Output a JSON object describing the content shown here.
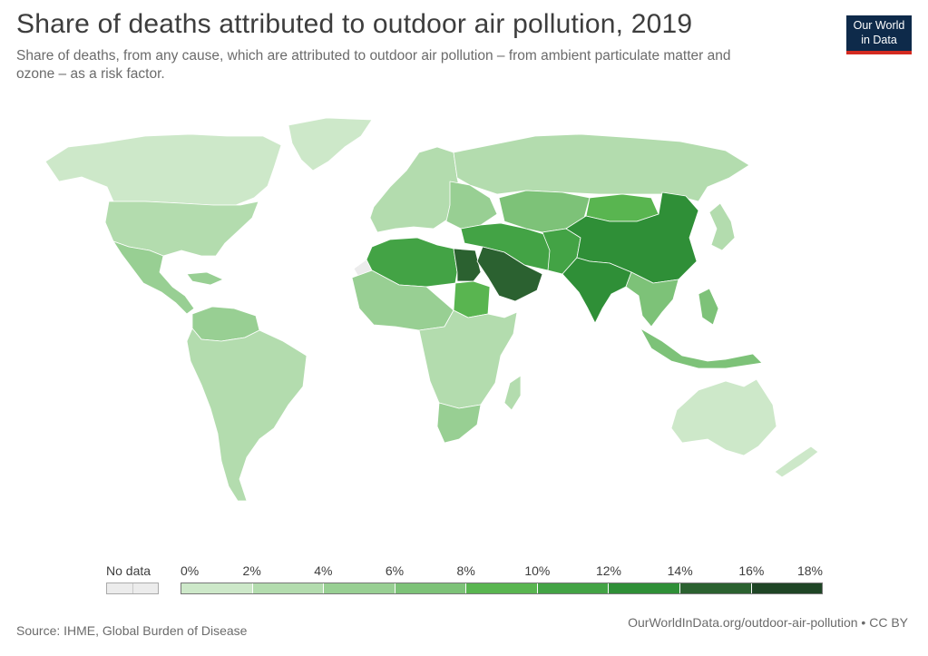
{
  "header": {
    "title": "Share of deaths attributed to outdoor air pollution, 2019",
    "subtitle": "Share of deaths, from any cause, which are attributed to outdoor air pollution – from ambient particulate matter and ozone – as a risk factor."
  },
  "logo": {
    "line1": "Our World",
    "line2": "in Data",
    "bg_color": "#0e2a4a",
    "accent_color": "#d42b21"
  },
  "legend": {
    "no_data_label": "No data",
    "no_data_color": "#ececec",
    "ticks": [
      "0%",
      "2%",
      "4%",
      "6%",
      "8%",
      "10%",
      "12%",
      "14%",
      "16%",
      "18%"
    ],
    "bins": [
      {
        "from": 0,
        "to": 2,
        "color": "#cde8c9"
      },
      {
        "from": 2,
        "to": 4,
        "color": "#b3dcae"
      },
      {
        "from": 4,
        "to": 6,
        "color": "#98cf93"
      },
      {
        "from": 6,
        "to": 8,
        "color": "#7dc278"
      },
      {
        "from": 8,
        "to": 10,
        "color": "#59b550"
      },
      {
        "from": 10,
        "to": 12,
        "color": "#43a345"
      },
      {
        "from": 12,
        "to": 14,
        "color": "#2f8f37"
      },
      {
        "from": 14,
        "to": 16,
        "color": "#2b6130"
      },
      {
        "from": 16,
        "to": 18,
        "color": "#1f4525"
      }
    ]
  },
  "map_data": {
    "north_america": "#cde8c9",
    "greenland": "#cde8c9",
    "united_states": "#b3dcae",
    "mexico_central_america": "#98cf93",
    "caribbean": "#98cf93",
    "south_america": "#b3dcae",
    "northern_south_america": "#98cf93",
    "europe": "#b3dcae",
    "eastern_europe": "#98cf93",
    "russia": "#b3dcae",
    "central_asia": "#7dc278",
    "mongolia": "#59b550",
    "china": "#2f8f37",
    "india": "#2f8f37",
    "pakistan": "#43a345",
    "north_africa": "#43a345",
    "egypt": "#2b6130",
    "arabian_peninsula": "#2b6130",
    "middle_east": "#43a345",
    "sudan": "#59b550",
    "west_africa": "#98cf93",
    "sub_saharan_africa": "#b3dcae",
    "southern_africa": "#98cf93",
    "southeast_asia": "#7dc278",
    "japan_korea": "#b3dcae",
    "australia": "#cde8c9",
    "new_zealand": "#cde8c9",
    "western_sahara": "#ececec",
    "ocean": "#ffffff"
  },
  "footer": {
    "source": "Source: IHME, Global Burden of Disease",
    "url": "OurWorldInData.org/outdoor-air-pollution",
    "license": "• CC BY"
  }
}
